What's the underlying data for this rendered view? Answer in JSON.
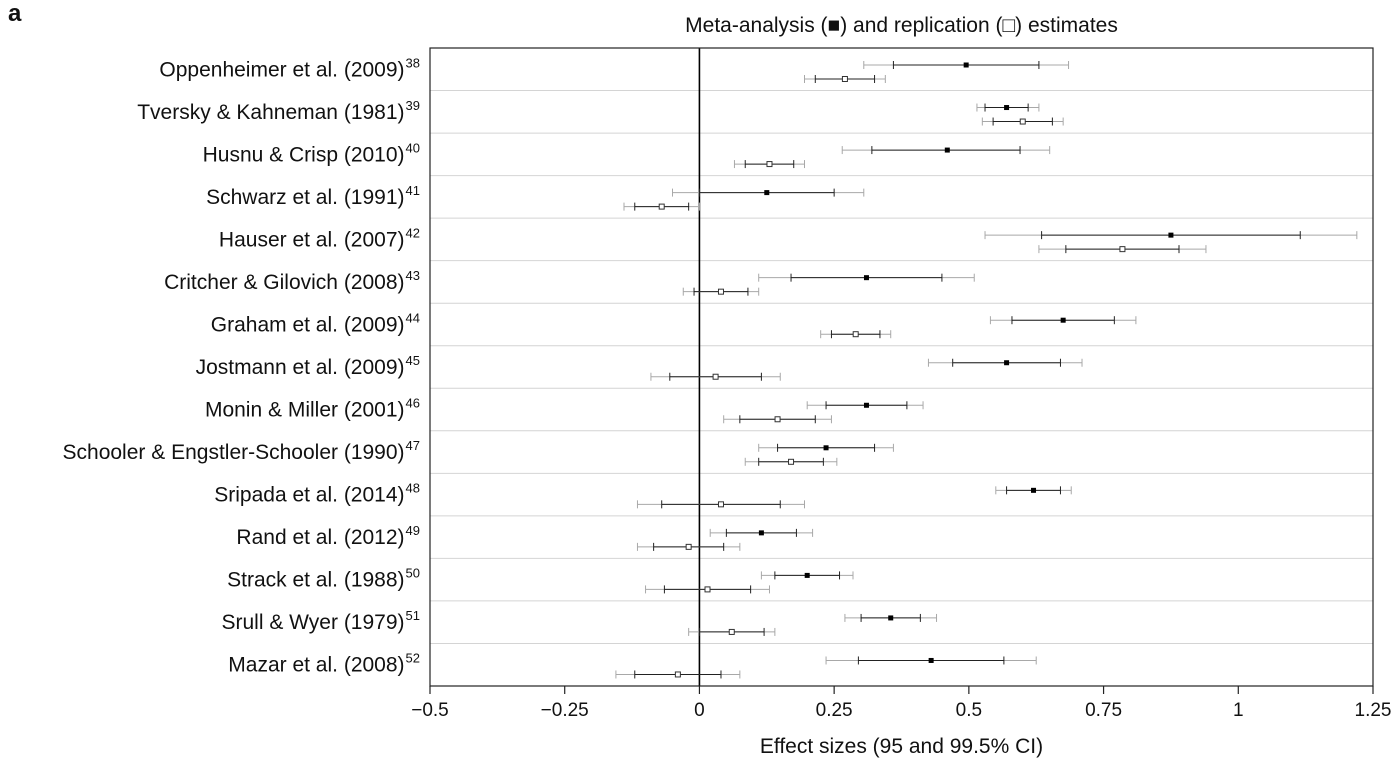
{
  "panel_letter": "a",
  "chart_data": {
    "type": "forest",
    "title": "Meta-analysis (■) and replication (□) estimates",
    "xlabel": "Effect sizes (95 and 99.5% CI)",
    "xlim": [
      -0.5,
      1.25
    ],
    "xticks": [
      -0.5,
      -0.25,
      0,
      0.25,
      0.5,
      0.75,
      1,
      1.25
    ],
    "xtick_labels": [
      "−0.5",
      "−0.25",
      "0",
      "0.25",
      "0.5",
      "0.75",
      "1",
      "1.25"
    ],
    "reference_line": 0,
    "series": [
      {
        "name": "Meta-analysis",
        "marker": "filled-square"
      },
      {
        "name": "replication",
        "marker": "open-square"
      }
    ],
    "studies": [
      {
        "label": "Oppenheimer et al. (2009)",
        "ref": "38",
        "meta": {
          "est": 0.495,
          "ci95": [
            0.36,
            0.63
          ],
          "ci995": [
            0.305,
            0.685
          ]
        },
        "rep": {
          "est": 0.27,
          "ci95": [
            0.215,
            0.325
          ],
          "ci995": [
            0.195,
            0.345
          ]
        }
      },
      {
        "label": "Tversky & Kahneman (1981)",
        "ref": "39",
        "meta": {
          "est": 0.57,
          "ci95": [
            0.53,
            0.61
          ],
          "ci995": [
            0.515,
            0.63
          ]
        },
        "rep": {
          "est": 0.6,
          "ci95": [
            0.545,
            0.655
          ],
          "ci995": [
            0.525,
            0.675
          ]
        }
      },
      {
        "label": "Husnu & Crisp (2010)",
        "ref": "40",
        "meta": {
          "est": 0.46,
          "ci95": [
            0.32,
            0.595
          ],
          "ci995": [
            0.265,
            0.65
          ]
        },
        "rep": {
          "est": 0.13,
          "ci95": [
            0.085,
            0.175
          ],
          "ci995": [
            0.065,
            0.195
          ]
        }
      },
      {
        "label": "Schwarz et al. (1991)",
        "ref": "41",
        "meta": {
          "est": 0.125,
          "ci95": [
            0.0,
            0.25
          ],
          "ci995": [
            -0.05,
            0.305
          ]
        },
        "rep": {
          "est": -0.07,
          "ci95": [
            -0.12,
            -0.02
          ],
          "ci995": [
            -0.14,
            0.0
          ]
        }
      },
      {
        "label": "Hauser et al. (2007)",
        "ref": "42",
        "meta": {
          "est": 0.875,
          "ci95": [
            0.635,
            1.115
          ],
          "ci995": [
            0.53,
            1.22
          ]
        },
        "rep": {
          "est": 0.785,
          "ci95": [
            0.68,
            0.89
          ],
          "ci995": [
            0.63,
            0.94
          ]
        }
      },
      {
        "label": "Critcher & Gilovich (2008)",
        "ref": "43",
        "meta": {
          "est": 0.31,
          "ci95": [
            0.17,
            0.45
          ],
          "ci995": [
            0.11,
            0.51
          ]
        },
        "rep": {
          "est": 0.04,
          "ci95": [
            -0.01,
            0.09
          ],
          "ci995": [
            -0.03,
            0.11
          ]
        }
      },
      {
        "label": "Graham et al. (2009)",
        "ref": "44",
        "meta": {
          "est": 0.675,
          "ci95": [
            0.58,
            0.77
          ],
          "ci995": [
            0.54,
            0.81
          ]
        },
        "rep": {
          "est": 0.29,
          "ci95": [
            0.245,
            0.335
          ],
          "ci995": [
            0.225,
            0.355
          ]
        }
      },
      {
        "label": "Jostmann et al. (2009)",
        "ref": "45",
        "meta": {
          "est": 0.57,
          "ci95": [
            0.47,
            0.67
          ],
          "ci995": [
            0.425,
            0.71
          ]
        },
        "rep": {
          "est": 0.03,
          "ci95": [
            -0.055,
            0.115
          ],
          "ci995": [
            -0.09,
            0.15
          ]
        }
      },
      {
        "label": "Monin & Miller (2001)",
        "ref": "46",
        "meta": {
          "est": 0.31,
          "ci95": [
            0.235,
            0.385
          ],
          "ci995": [
            0.2,
            0.415
          ]
        },
        "rep": {
          "est": 0.145,
          "ci95": [
            0.075,
            0.215
          ],
          "ci995": [
            0.045,
            0.245
          ]
        }
      },
      {
        "label": "Schooler & Engstler-Schooler (1990)",
        "ref": "47",
        "meta": {
          "est": 0.235,
          "ci95": [
            0.145,
            0.325
          ],
          "ci995": [
            0.11,
            0.36
          ]
        },
        "rep": {
          "est": 0.17,
          "ci95": [
            0.11,
            0.23
          ],
          "ci995": [
            0.085,
            0.255
          ]
        }
      },
      {
        "label": "Sripada et al. (2014)",
        "ref": "48",
        "meta": {
          "est": 0.62,
          "ci95": [
            0.57,
            0.67
          ],
          "ci995": [
            0.55,
            0.69
          ]
        },
        "rep": {
          "est": 0.04,
          "ci95": [
            -0.07,
            0.15
          ],
          "ci995": [
            -0.115,
            0.195
          ]
        }
      },
      {
        "label": "Rand et al. (2012)",
        "ref": "49",
        "meta": {
          "est": 0.115,
          "ci95": [
            0.05,
            0.18
          ],
          "ci995": [
            0.02,
            0.21
          ]
        },
        "rep": {
          "est": -0.02,
          "ci95": [
            -0.085,
            0.045
          ],
          "ci995": [
            -0.115,
            0.075
          ]
        }
      },
      {
        "label": "Strack et al. (1988)",
        "ref": "50",
        "meta": {
          "est": 0.2,
          "ci95": [
            0.14,
            0.26
          ],
          "ci995": [
            0.115,
            0.285
          ]
        },
        "rep": {
          "est": 0.015,
          "ci95": [
            -0.065,
            0.095
          ],
          "ci995": [
            -0.1,
            0.13
          ]
        }
      },
      {
        "label": "Srull & Wyer (1979)",
        "ref": "51",
        "meta": {
          "est": 0.355,
          "ci95": [
            0.3,
            0.41
          ],
          "ci995": [
            0.27,
            0.44
          ]
        },
        "rep": {
          "est": 0.06,
          "ci95": [
            0.0,
            0.12
          ],
          "ci995": [
            -0.02,
            0.14
          ]
        }
      },
      {
        "label": "Mazar et al. (2008)",
        "ref": "52",
        "meta": {
          "est": 0.43,
          "ci95": [
            0.295,
            0.565
          ],
          "ci995": [
            0.235,
            0.625
          ]
        },
        "rep": {
          "est": -0.04,
          "ci95": [
            -0.12,
            0.04
          ],
          "ci995": [
            -0.155,
            0.075
          ]
        }
      }
    ],
    "grid": "horizontal-row-separators",
    "colors": {
      "ci95": "#222222",
      "ci995": "#a8a8a8",
      "row_separator": "#d4d4d4",
      "frame": "#222222"
    }
  }
}
